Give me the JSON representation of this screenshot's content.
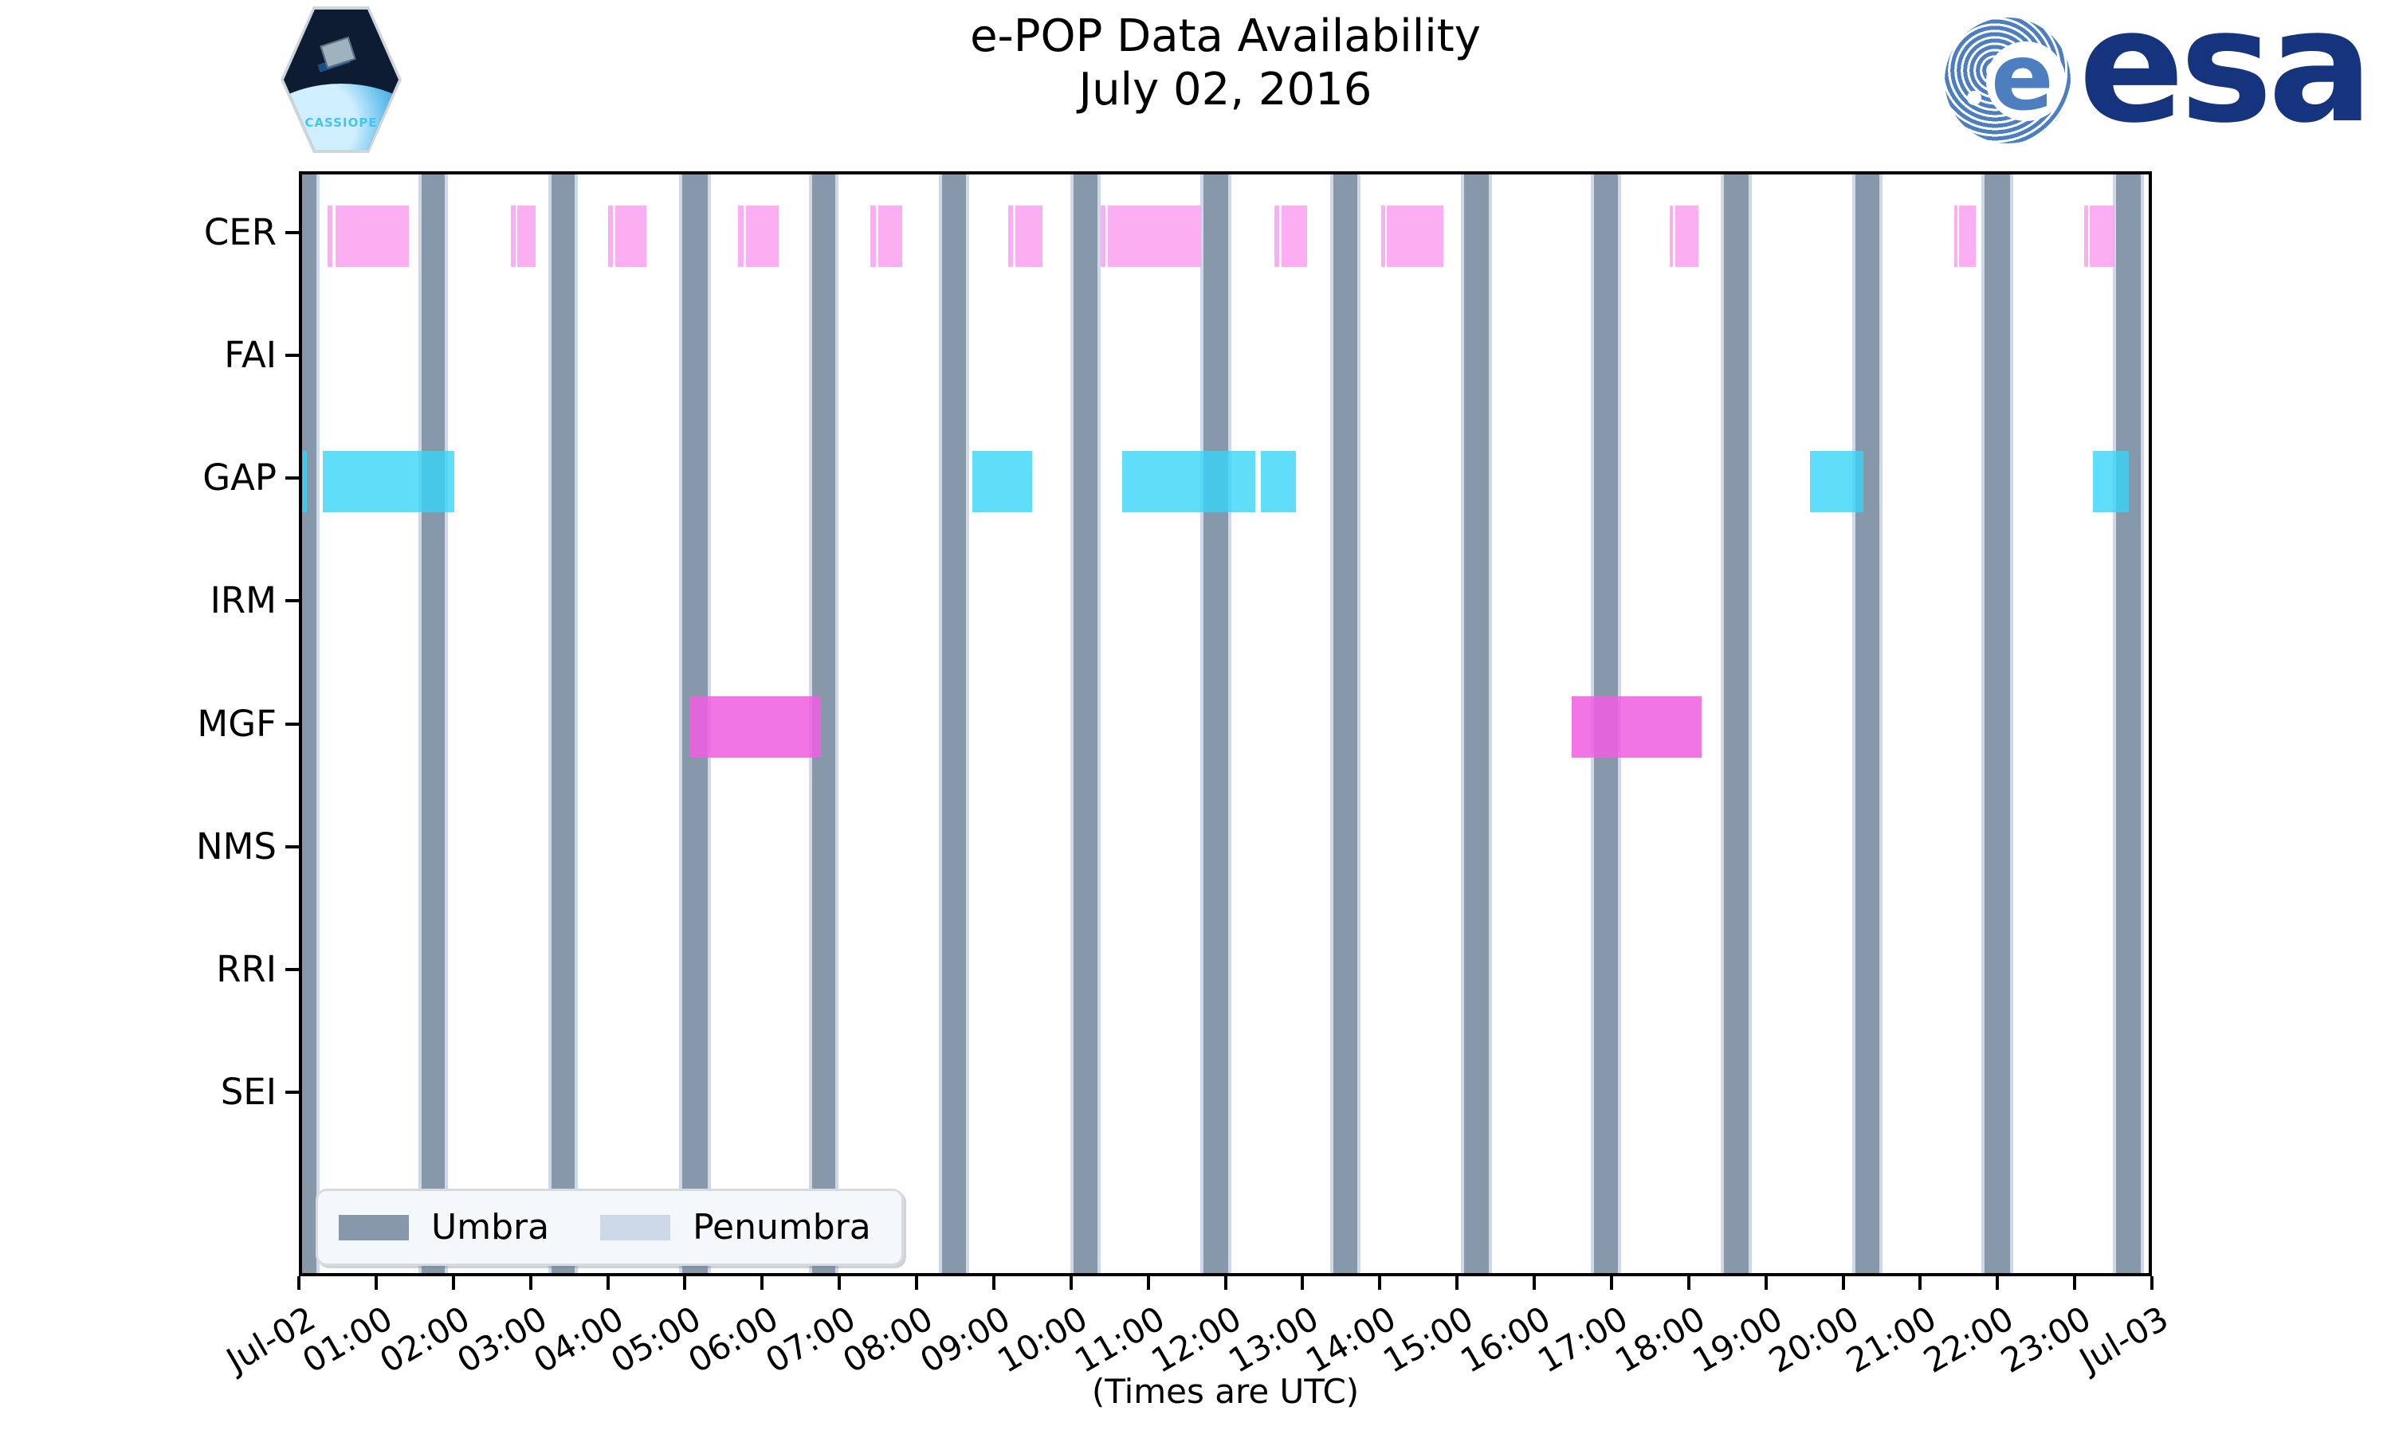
{
  "header": {
    "title": "e-POP Data Availability",
    "subtitle": "July 02, 2016",
    "cassiope_label": "CASSIOPE",
    "esa_wordmark": "esa",
    "esa_e": "e"
  },
  "chart_data": {
    "type": "timeline",
    "title": "e-POP Data Availability",
    "subtitle": "July 02, 2016",
    "xlabel": "(Times are UTC)",
    "x_start_hours": 0,
    "x_end_hours": 24,
    "x_tick_labels": [
      "Jul-02",
      "01:00",
      "02:00",
      "03:00",
      "04:00",
      "05:00",
      "06:00",
      "07:00",
      "08:00",
      "09:00",
      "10:00",
      "11:00",
      "12:00",
      "13:00",
      "14:00",
      "15:00",
      "16:00",
      "17:00",
      "18:00",
      "19:00",
      "20:00",
      "21:00",
      "22:00",
      "23:00",
      "Jul-03"
    ],
    "instruments": [
      "CER",
      "FAI",
      "GAP",
      "IRM",
      "MGF",
      "NMS",
      "RRI",
      "SEI"
    ],
    "series": [
      {
        "instrument": "CER",
        "color": "rgba(250,160,238,0.85)",
        "intervals_hours": [
          [
            0.33,
            0.39
          ],
          [
            0.43,
            1.39
          ],
          [
            2.71,
            2.78
          ],
          [
            2.8,
            3.03
          ],
          [
            3.98,
            4.04
          ],
          [
            4.07,
            4.47
          ],
          [
            5.67,
            5.74
          ],
          [
            5.77,
            6.19
          ],
          [
            7.39,
            7.46
          ],
          [
            7.49,
            7.8
          ],
          [
            9.18,
            9.24
          ],
          [
            9.27,
            9.62
          ],
          [
            10.38,
            10.44
          ],
          [
            10.47,
            11.68
          ],
          [
            12.64,
            12.7
          ],
          [
            12.73,
            13.06
          ],
          [
            14.02,
            14.08
          ],
          [
            14.1,
            14.83
          ],
          [
            17.77,
            17.82
          ],
          [
            17.85,
            18.15
          ],
          [
            21.47,
            21.51
          ],
          [
            21.53,
            21.75
          ],
          [
            23.16,
            23.21
          ],
          [
            23.23,
            23.55
          ]
        ]
      },
      {
        "instrument": "GAP",
        "color": "rgba(55,213,248,0.8)",
        "intervals_hours": [
          [
            0.01,
            0.06
          ],
          [
            0.27,
            1.98
          ],
          [
            8.71,
            9.49
          ],
          [
            10.66,
            12.39
          ],
          [
            12.46,
            12.92
          ],
          [
            19.6,
            20.29
          ],
          [
            23.27,
            23.74
          ]
        ]
      },
      {
        "instrument": "MGF",
        "color": "rgba(240,93,226,0.85)",
        "intervals_hours": [
          [
            5.03,
            6.74
          ],
          [
            16.5,
            18.19
          ]
        ]
      }
    ],
    "umbra_intervals_hours": [
      [
        0.0,
        0.19
      ],
      [
        1.55,
        1.85
      ],
      [
        3.24,
        3.54
      ],
      [
        4.94,
        5.27
      ],
      [
        6.63,
        6.93
      ],
      [
        8.32,
        8.63
      ],
      [
        10.03,
        10.34
      ],
      [
        11.71,
        12.04
      ],
      [
        13.4,
        13.71
      ],
      [
        15.1,
        15.42
      ],
      [
        16.79,
        17.1
      ],
      [
        18.48,
        18.8
      ],
      [
        20.19,
        20.5
      ],
      [
        21.87,
        22.2
      ],
      [
        23.58,
        23.9
      ]
    ],
    "legend": {
      "entries": [
        {
          "label": "Umbra",
          "color": "#8798AB"
        },
        {
          "label": "Penumbra",
          "color": "#CDD9E8"
        }
      ]
    }
  }
}
